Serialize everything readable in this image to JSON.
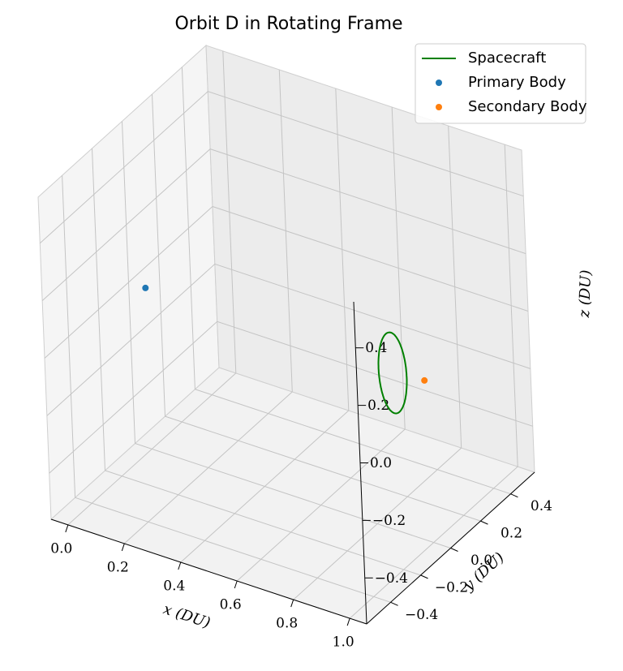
{
  "chart_data": {
    "type": "line3d",
    "title": "Orbit D in Rotating Frame",
    "xlabel": "x (DU)",
    "ylabel": "y (DU)",
    "zlabel": "z (DU)",
    "xlim": [
      -0.06,
      1.06
    ],
    "ylim": [
      -0.56,
      0.56
    ],
    "zlim": [
      -0.56,
      0.56
    ],
    "xticks": [
      0.0,
      0.2,
      0.4,
      0.6,
      0.8,
      1.0
    ],
    "yticks": [
      -0.4,
      -0.2,
      0.0,
      0.2,
      0.4
    ],
    "zticks": [
      -0.4,
      -0.2,
      0.0,
      0.2,
      0.4
    ],
    "xtick_labels": [
      "0.0",
      "0.2",
      "0.4",
      "0.6",
      "0.8",
      "1.0"
    ],
    "ytick_labels": [
      "−0.4",
      "−0.2",
      "0.0",
      "0.2",
      "0.4"
    ],
    "ztick_labels": [
      "−0.4",
      "−0.2",
      "0.0",
      "0.2",
      "0.4"
    ],
    "grid": true,
    "legend_position": "top-right",
    "series": [
      {
        "name": "Spacecraft",
        "kind": "line",
        "color": "#008000",
        "orbit": {
          "center": [
            0.86,
            0.03,
            -0.03
          ],
          "radius_x": 0.05,
          "radius_z": 0.14
        }
      },
      {
        "name": "Primary Body",
        "kind": "point",
        "color": "#1f77b4",
        "point": [
          0.0,
          0.0,
          0.0
        ]
      },
      {
        "name": "Secondary Body",
        "kind": "point",
        "color": "#ff7f0e",
        "point": [
          0.99,
          0.0,
          0.0
        ]
      }
    ]
  }
}
